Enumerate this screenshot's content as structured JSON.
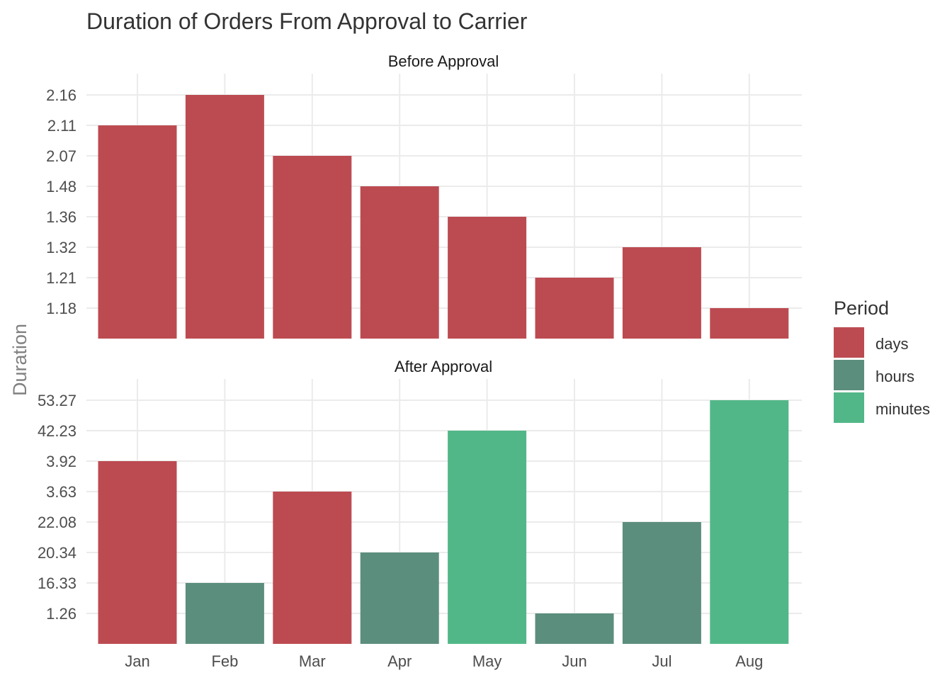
{
  "chart_data": {
    "type": "bar",
    "title": "Duration of Orders From Approval to Carrier",
    "ylabel": "Duration",
    "categories": [
      "Jan",
      "Feb",
      "Mar",
      "Apr",
      "May",
      "Jun",
      "Jul",
      "Aug"
    ],
    "legend": {
      "title": "Period",
      "placement": "right",
      "items": [
        {
          "label": "days",
          "color": "#bc4b51"
        },
        {
          "label": "hours",
          "color": "#5b8e7d"
        },
        {
          "label": "minutes",
          "color": "#52b788"
        }
      ]
    },
    "grid": true,
    "panels": [
      {
        "name": "Before Approval",
        "tick_labels": [
          "1.18",
          "1.21",
          "1.32",
          "1.36",
          "1.48",
          "2.07",
          "2.11",
          "2.16"
        ],
        "bars": [
          {
            "category": "Jan",
            "value": "2.11",
            "period": "days"
          },
          {
            "category": "Feb",
            "value": "2.16",
            "period": "days"
          },
          {
            "category": "Mar",
            "value": "2.07",
            "period": "days"
          },
          {
            "category": "Apr",
            "value": "1.48",
            "period": "days"
          },
          {
            "category": "May",
            "value": "1.36",
            "period": "days"
          },
          {
            "category": "Jun",
            "value": "1.21",
            "period": "days"
          },
          {
            "category": "Jul",
            "value": "1.32",
            "period": "days"
          },
          {
            "category": "Aug",
            "value": "1.18",
            "period": "days"
          }
        ]
      },
      {
        "name": "After Approval",
        "tick_labels": [
          "1.26",
          "16.33",
          "20.34",
          "22.08",
          "3.63",
          "3.92",
          "42.23",
          "53.27"
        ],
        "bars": [
          {
            "category": "Jan",
            "value": "3.92",
            "period": "days"
          },
          {
            "category": "Feb",
            "value": "16.33",
            "period": "hours"
          },
          {
            "category": "Mar",
            "value": "3.63",
            "period": "days"
          },
          {
            "category": "Apr",
            "value": "20.34",
            "period": "hours"
          },
          {
            "category": "May",
            "value": "42.23",
            "period": "minutes"
          },
          {
            "category": "Jun",
            "value": "1.26",
            "period": "hours"
          },
          {
            "category": "Jul",
            "value": "22.08",
            "period": "hours"
          },
          {
            "category": "Aug",
            "value": "53.27",
            "period": "minutes"
          }
        ]
      }
    ]
  }
}
